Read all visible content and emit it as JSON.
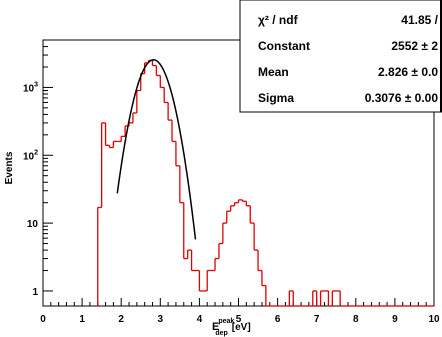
{
  "chart_data": {
    "type": "histogram",
    "xlabel": {
      "main": "E",
      "sup": "peak",
      "sub": "dep",
      "unit": "[eV]"
    },
    "ylabel": "Events",
    "xlim": [
      0,
      10
    ],
    "ylim": [
      0.6,
      5000
    ],
    "y_log": true,
    "x_ticks": [
      "0",
      "1",
      "2",
      "3",
      "4",
      "5",
      "6",
      "7",
      "8",
      "9",
      "10"
    ],
    "y_ticks": [
      {
        "value": 1,
        "label": "1"
      },
      {
        "value": 10,
        "label": "10"
      },
      {
        "value": 100,
        "base": "10",
        "exp": "2"
      },
      {
        "value": 1000,
        "base": "10",
        "exp": "3"
      }
    ],
    "histogram_color": "#e00000",
    "fit_color": "#000000",
    "bin_width": 0.1,
    "bin_start": 1.4,
    "bin_contents": [
      17,
      300,
      140,
      130,
      160,
      160,
      190,
      270,
      300,
      420,
      900,
      1600,
      2300,
      2500,
      2100,
      1500,
      1000,
      600,
      330,
      160,
      70,
      20,
      3,
      4,
      2,
      2,
      1,
      1,
      2,
      2,
      3,
      5,
      10,
      15,
      18,
      20,
      22,
      21,
      18,
      10,
      4,
      2,
      1.2,
      0.5,
      0,
      0,
      0,
      0,
      0,
      1,
      0,
      0,
      0,
      0,
      0,
      1,
      0,
      1,
      1,
      0,
      1,
      1,
      0,
      0,
      0,
      0,
      0,
      0,
      0,
      0,
      0,
      0,
      0,
      0,
      0,
      0,
      0,
      0,
      0,
      0,
      0,
      0,
      0,
      0,
      0,
      0
    ],
    "fit": {
      "function": "gaus",
      "constant": 2552,
      "mean": 2.826,
      "sigma": 0.3076,
      "x_range": [
        1.9,
        3.9
      ]
    },
    "stats_box": {
      "rows": [
        {
          "label": "χ² / ndf",
          "value": "41.85 /"
        },
        {
          "label": "Constant",
          "value": "2552 ± 2"
        },
        {
          "label": "Mean",
          "value": "2.826 ± 0.0"
        },
        {
          "label": "Sigma",
          "value": "0.3076 ± 0.00"
        }
      ]
    }
  }
}
